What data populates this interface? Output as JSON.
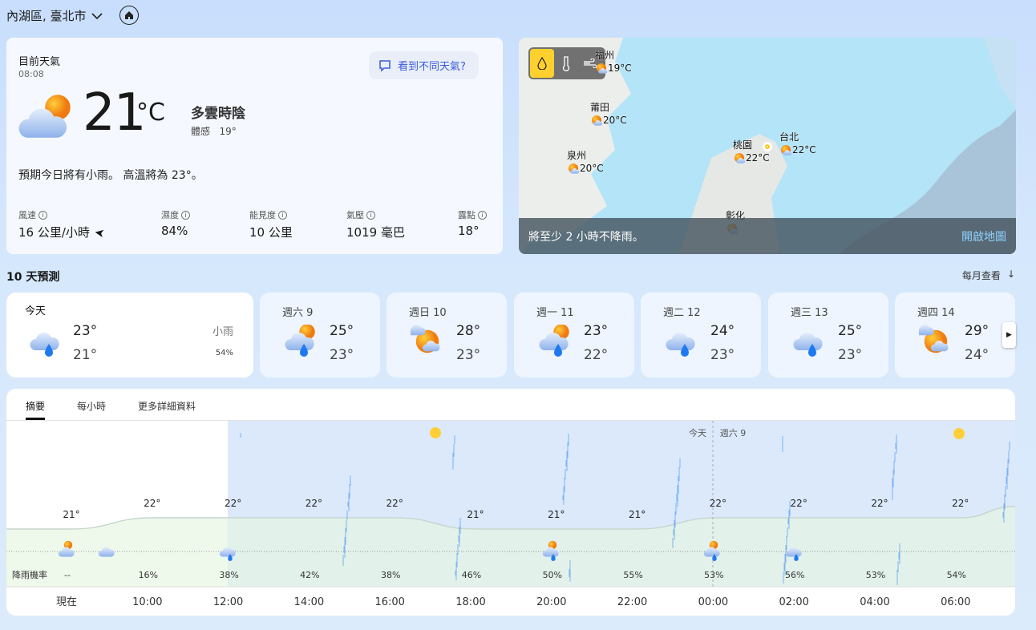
{
  "location": {
    "name": "內湖區, 臺北市",
    "chevron_icon": "chevron-down-icon",
    "home_icon": "home-icon"
  },
  "current": {
    "title": "目前天氣",
    "time": "08:08",
    "feedback": "看到不同天氣?",
    "temp": "21",
    "unit": "°C",
    "condition": "多雲時陰",
    "feels_label": "體感",
    "feels_value": "19°",
    "summary": "預期今日將有小雨。 高溫將為 23°。",
    "details": [
      {
        "label": "風速",
        "value": "16 公里/小時"
      },
      {
        "label": "濕度",
        "value": "84%"
      },
      {
        "label": "能見度",
        "value": "10 公里"
      },
      {
        "label": "氣壓",
        "value": "1019 毫巴"
      },
      {
        "label": "露點",
        "value": "18°"
      }
    ]
  },
  "map": {
    "labels": [
      {
        "city": "福州",
        "temp": "19°C"
      },
      {
        "city": "莆田",
        "temp": "20°C"
      },
      {
        "city": "泉州",
        "temp": "20°C"
      },
      {
        "city": "桃園",
        "temp": "22°C"
      },
      {
        "city": "台北",
        "temp": "22°C"
      },
      {
        "city": "彰化",
        "temp": ""
      }
    ],
    "layers": [
      "precipitation",
      "temperature",
      "wind"
    ],
    "active_layer": "precipitation",
    "accent": "#ffd02e",
    "message": "將至少 2 小時不降雨。",
    "open_map": "開啟地圖"
  },
  "forecast": {
    "title": "10 天預測",
    "monthly": "每月查看",
    "days": [
      {
        "name": "今天",
        "hi": "23°",
        "lo": "21°",
        "cond": "小雨",
        "precip": "54%",
        "icon": "rain"
      },
      {
        "name": "週六 9",
        "hi": "25°",
        "lo": "23°",
        "icon": "sun-rain"
      },
      {
        "name": "週日 10",
        "hi": "28°",
        "lo": "23°",
        "icon": "sun-cloud"
      },
      {
        "name": "週一 11",
        "hi": "23°",
        "lo": "22°",
        "icon": "sun-rain"
      },
      {
        "name": "週二 12",
        "hi": "24°",
        "lo": "23°",
        "icon": "rain"
      },
      {
        "name": "週三 13",
        "hi": "25°",
        "lo": "23°",
        "icon": "rain"
      },
      {
        "name": "週四 14",
        "hi": "29°",
        "lo": "24°",
        "icon": "sun-cloud"
      }
    ]
  },
  "tabs": [
    "摘要",
    "每小時",
    "更多詳細資料"
  ],
  "chart_data": {
    "type": "line",
    "x": [
      "現在",
      "10:00",
      "12:00",
      "14:00",
      "16:00",
      "18:00",
      "20:00",
      "22:00",
      "00:00",
      "02:00",
      "04:00",
      "06:00"
    ],
    "temperature": [
      21,
      22,
      22,
      22,
      22,
      21,
      21,
      21,
      22,
      22,
      22,
      22
    ],
    "precip_label": "降雨機率",
    "precip": [
      "--",
      "16%",
      "38%",
      "42%",
      "38%",
      "46%",
      "50%",
      "55%",
      "53%",
      "56%",
      "53%",
      "54%"
    ],
    "day_markers": [
      "今天",
      "週六 9"
    ]
  }
}
